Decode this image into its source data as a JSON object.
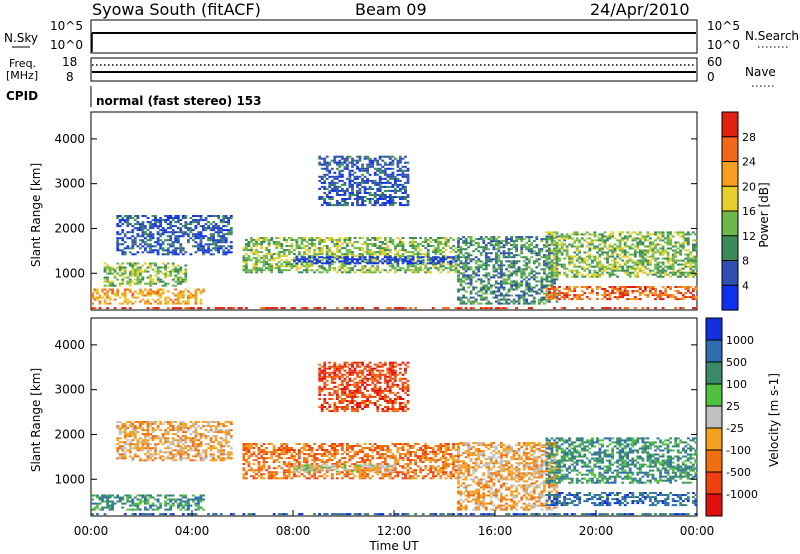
{
  "header": {
    "station": "Syowa South (fitACF)",
    "beam": "Beam 09",
    "date": "24/Apr/2010"
  },
  "strips": {
    "nsky_label": "N.Sky",
    "nsky_ticks": [
      "10^5",
      "10^0"
    ],
    "nsearch_label": "N.Search",
    "freq_label_1": "Freq.",
    "freq_label_2": "[MHz]",
    "freq_ticks": [
      "18",
      "8"
    ],
    "nave_label": "Nave",
    "nave_ticks": [
      "60",
      "0"
    ],
    "cpid_label": "CPID",
    "cpid_value": "normal (fast stereo) 153"
  },
  "chart_data": [
    {
      "type": "heatmap",
      "name": "power",
      "ylabel": "Slant Range [km]",
      "xlabel": "",
      "ylim": [
        180,
        4600
      ],
      "yticks": [
        1000,
        2000,
        3000,
        4000
      ],
      "xlim": [
        0,
        24
      ],
      "colorbar": {
        "label": "Power [dB]",
        "ticks": [
          "4",
          "8",
          "12",
          "16",
          "20",
          "24",
          "28"
        ],
        "colors": [
          "#1030f0",
          "#2f50b0",
          "#3a8a5a",
          "#6db84a",
          "#e6cf2a",
          "#f59e20",
          "#f06818",
          "#e02010"
        ]
      },
      "bands": [
        {
          "t": [
            0.0,
            24.0
          ],
          "r": [
            200,
            240
          ],
          "level": 7
        },
        {
          "t": [
            0.0,
            4.5
          ],
          "r": [
            300,
            650
          ],
          "level": 5
        },
        {
          "t": [
            0.5,
            3.8
          ],
          "r": [
            700,
            1200
          ],
          "level": 3
        },
        {
          "t": [
            1.0,
            5.5
          ],
          "r": [
            1400,
            2300
          ],
          "level": 1
        },
        {
          "t": [
            6.0,
            14.5
          ],
          "r": [
            1000,
            1800
          ],
          "level": 3
        },
        {
          "t": [
            8.0,
            14.5
          ],
          "r": [
            1200,
            1350
          ],
          "level": 0
        },
        {
          "t": [
            9.0,
            12.5
          ],
          "r": [
            2500,
            3600
          ],
          "level": 1
        },
        {
          "t": [
            14.5,
            18.5
          ],
          "r": [
            300,
            1800
          ],
          "level": 2
        },
        {
          "t": [
            18.0,
            24.0
          ],
          "r": [
            900,
            1900
          ],
          "level": 3
        },
        {
          "t": [
            18.0,
            24.0
          ],
          "r": [
            400,
            700
          ],
          "level": 6
        }
      ]
    },
    {
      "type": "heatmap",
      "name": "velocity",
      "ylabel": "Slant Range [km]",
      "xlabel": "Time UT",
      "ylim": [
        180,
        4600
      ],
      "yticks": [
        1000,
        2000,
        3000,
        4000
      ],
      "xlim": [
        0,
        24
      ],
      "xticks": [
        "00:00",
        "04:00",
        "08:00",
        "12:00",
        "16:00",
        "20:00",
        "00:00"
      ],
      "colorbar": {
        "label": "Velocity [m s-1]",
        "ticks": [
          "1000",
          "500",
          "100",
          "25",
          "-25",
          "-100",
          "-500",
          "-1000"
        ],
        "colors": [
          "#1030e0",
          "#2f6db0",
          "#3a8a6a",
          "#50c040",
          "#c0c0c0",
          "#f5a020",
          "#f07010",
          "#f04010",
          "#e01010"
        ]
      },
      "bands": [
        {
          "t": [
            0.0,
            24.0
          ],
          "r": [
            200,
            240
          ],
          "level": 1
        },
        {
          "t": [
            0.0,
            4.5
          ],
          "r": [
            300,
            650
          ],
          "level": 2
        },
        {
          "t": [
            1.0,
            5.5
          ],
          "r": [
            1400,
            2300
          ],
          "level": 5
        },
        {
          "t": [
            6.0,
            14.5
          ],
          "r": [
            1000,
            1800
          ],
          "level": 6
        },
        {
          "t": [
            8.0,
            12.0
          ],
          "r": [
            1150,
            1300
          ],
          "level": 4
        },
        {
          "t": [
            9.0,
            12.5
          ],
          "r": [
            2500,
            3600
          ],
          "level": 7
        },
        {
          "t": [
            14.5,
            18.5
          ],
          "r": [
            300,
            1800
          ],
          "level": 5
        },
        {
          "t": [
            18.0,
            24.0
          ],
          "r": [
            900,
            1900
          ],
          "level": 2
        },
        {
          "t": [
            18.0,
            24.0
          ],
          "r": [
            400,
            700
          ],
          "level": 1
        }
      ]
    }
  ]
}
